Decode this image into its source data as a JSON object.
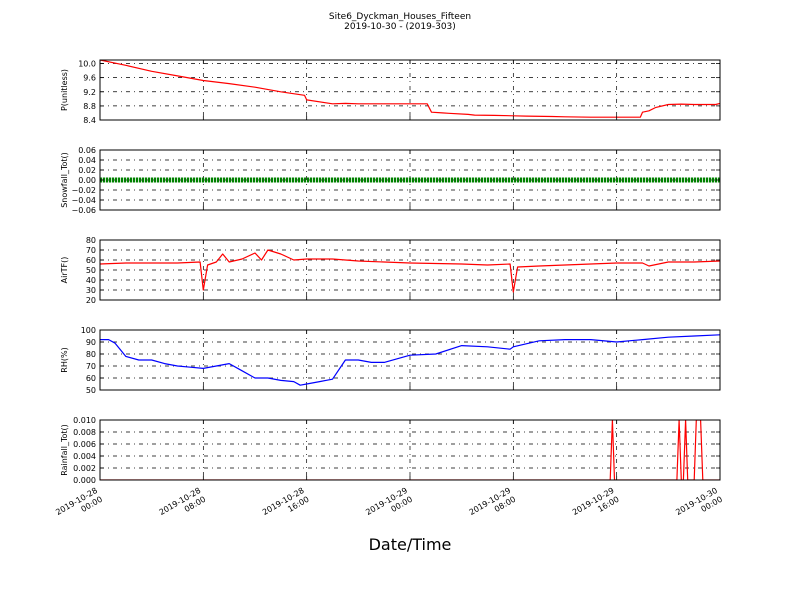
{
  "chart_data": {
    "type": "line",
    "title": "Site6_Dyckman_Houses_Fifteen",
    "subtitle": "2019-10-30 - (2019-303)",
    "xlabel": "Date/Time",
    "x_ticks": [
      {
        "line1": "2019-10-28",
        "line2": "00:00"
      },
      {
        "line1": "2019-10-28",
        "line2": "08:00"
      },
      {
        "line1": "2019-10-28",
        "line2": "16:00"
      },
      {
        "line1": "2019-10-29",
        "line2": "00:00"
      },
      {
        "line1": "2019-10-29",
        "line2": "08:00"
      },
      {
        "line1": "2019-10-29",
        "line2": "16:00"
      },
      {
        "line1": "2019-10-30",
        "line2": "00:00"
      }
    ],
    "xlim": [
      "2019-10-28 00:00",
      "2019-10-30 00:00"
    ],
    "grid": true,
    "panels": [
      {
        "ylabel": "P(unitless)",
        "ylim": [
          8.4,
          10.1
        ],
        "yticks": [
          "10.0",
          "9.6",
          "9.2",
          "8.8",
          "8.4"
        ],
        "ytick_values": [
          10.0,
          9.6,
          9.2,
          8.8,
          8.4
        ],
        "series": [
          {
            "color": "#ff0000",
            "x": [
              "2019-10-28 00:00",
              "2019-10-28 02:00",
              "2019-10-28 04:00",
              "2019-10-28 06:00",
              "2019-10-28 08:00",
              "2019-10-28 10:00",
              "2019-10-28 12:00",
              "2019-10-28 14:00",
              "2019-10-28 15:50",
              "2019-10-28 16:00",
              "2019-10-28 18:00",
              "2019-10-28 19:00",
              "2019-10-28 20:00",
              "2019-10-28 22:00",
              "2019-10-29 00:00",
              "2019-10-29 01:20",
              "2019-10-29 01:40",
              "2019-10-29 02:30",
              "2019-10-29 03:00",
              "2019-10-29 04:30",
              "2019-10-29 05:00",
              "2019-10-29 06:30",
              "2019-10-29 08:00",
              "2019-10-29 09:00",
              "2019-10-29 11:00",
              "2019-10-29 12:00",
              "2019-10-29 14:00",
              "2019-10-29 15:30",
              "2019-10-29 16:00",
              "2019-10-29 17:50",
              "2019-10-29 18:00",
              "2019-10-29 18:30",
              "2019-10-29 19:00",
              "2019-10-29 20:00",
              "2019-10-29 21:00",
              "2019-10-29 22:00",
              "2019-10-29 23:00",
              "2019-10-29 23:40",
              "2019-10-30 00:00"
            ],
            "y": [
              10.1,
              9.95,
              9.78,
              9.65,
              9.52,
              9.43,
              9.33,
              9.2,
              9.1,
              8.97,
              8.86,
              8.87,
              8.86,
              8.86,
              8.86,
              8.86,
              8.62,
              8.6,
              8.59,
              8.56,
              8.54,
              8.53,
              8.52,
              8.51,
              8.5,
              8.49,
              8.48,
              8.48,
              8.48,
              8.48,
              8.62,
              8.66,
              8.75,
              8.84,
              8.85,
              8.84,
              8.84,
              8.84,
              8.87
            ]
          }
        ]
      },
      {
        "ylabel": "Snowfall_Tot()",
        "ylim": [
          -0.06,
          0.06
        ],
        "yticks": [
          "0.06",
          "0.04",
          "0.02",
          "0.00",
          "−0.02",
          "−0.04",
          "−0.06"
        ],
        "ytick_values": [
          0.06,
          0.04,
          0.02,
          0.0,
          -0.02,
          -0.04,
          -0.06
        ],
        "series": [
          {
            "color": "#008000",
            "style": "dense-markers",
            "x": [
              "2019-10-28 00:00",
              "2019-10-30 00:00"
            ],
            "y": [
              0.0,
              0.0
            ]
          }
        ]
      },
      {
        "ylabel": "AirTF()",
        "ylim": [
          20,
          80
        ],
        "yticks": [
          "80",
          "70",
          "60",
          "50",
          "40",
          "30",
          "20"
        ],
        "ytick_values": [
          80,
          70,
          60,
          50,
          40,
          30,
          20
        ],
        "series": [
          {
            "color": "#ff0000",
            "x": [
              "2019-10-28 00:00",
              "2019-10-28 02:00",
              "2019-10-28 04:00",
              "2019-10-28 06:00",
              "2019-10-28 07:45",
              "2019-10-28 08:00",
              "2019-10-28 08:20",
              "2019-10-28 09:00",
              "2019-10-28 09:30",
              "2019-10-28 10:00",
              "2019-10-28 11:00",
              "2019-10-28 12:00",
              "2019-10-28 12:30",
              "2019-10-28 13:00",
              "2019-10-28 14:00",
              "2019-10-28 15:00",
              "2019-10-28 16:00",
              "2019-10-28 18:00",
              "2019-10-28 20:00",
              "2019-10-28 22:00",
              "2019-10-29 00:00",
              "2019-10-29 04:00",
              "2019-10-29 06:00",
              "2019-10-29 07:45",
              "2019-10-29 08:00",
              "2019-10-29 08:20",
              "2019-10-29 10:00",
              "2019-10-29 12:00",
              "2019-10-29 14:00",
              "2019-10-29 16:00",
              "2019-10-29 18:00",
              "2019-10-29 18:30",
              "2019-10-29 20:00",
              "2019-10-29 22:00",
              "2019-10-30 00:00"
            ],
            "y": [
              56,
              57,
              57,
              57,
              58,
              30,
              55,
              58,
              66,
              58,
              61,
              67,
              60,
              70,
              66,
              60,
              61,
              61,
              59,
              58,
              57,
              56,
              55,
              56,
              28,
              53,
              54,
              55,
              56,
              57,
              57,
              54,
              58,
              58,
              59
            ]
          }
        ]
      },
      {
        "ylabel": "RH(%)",
        "ylim": [
          50,
          100
        ],
        "yticks": [
          "100",
          "90",
          "80",
          "70",
          "60",
          "50"
        ],
        "ytick_values": [
          100,
          90,
          80,
          70,
          60,
          50
        ],
        "series": [
          {
            "color": "#0000ff",
            "x": [
              "2019-10-28 00:00",
              "2019-10-28 00:40",
              "2019-10-28 01:10",
              "2019-10-28 02:00",
              "2019-10-28 03:00",
              "2019-10-28 04:00",
              "2019-10-28 05:00",
              "2019-10-28 06:00",
              "2019-10-28 07:00",
              "2019-10-28 08:00",
              "2019-10-28 09:00",
              "2019-10-28 10:00",
              "2019-10-28 11:00",
              "2019-10-28 12:00",
              "2019-10-28 13:00",
              "2019-10-28 14:00",
              "2019-10-28 15:00",
              "2019-10-28 15:30",
              "2019-10-28 16:00",
              "2019-10-28 17:00",
              "2019-10-28 18:00",
              "2019-10-28 19:00",
              "2019-10-28 20:00",
              "2019-10-28 21:00",
              "2019-10-28 22:00",
              "2019-10-29 00:00",
              "2019-10-29 02:00",
              "2019-10-29 04:00",
              "2019-10-29 06:00",
              "2019-10-29 07:45",
              "2019-10-29 08:00",
              "2019-10-29 10:00",
              "2019-10-29 12:00",
              "2019-10-29 14:00",
              "2019-10-29 16:00",
              "2019-10-29 18:00",
              "2019-10-29 20:00",
              "2019-10-29 22:00",
              "2019-10-30 00:00"
            ],
            "y": [
              92,
              92,
              89,
              78,
              75,
              75,
              72,
              70,
              69,
              68,
              70,
              72,
              66,
              60,
              60,
              58,
              57,
              54,
              55,
              57,
              59,
              75,
              75,
              73,
              73,
              79,
              80,
              87,
              86,
              84,
              86,
              91,
              92,
              92,
              90,
              92,
              94,
              95,
              96
            ]
          }
        ]
      },
      {
        "ylabel": "Rainfall_Tot()",
        "ylim": [
          0.0,
          0.01
        ],
        "yticks": [
          "0.010",
          "0.008",
          "0.006",
          "0.004",
          "0.002",
          "0.000"
        ],
        "ytick_values": [
          0.01,
          0.008,
          0.006,
          0.004,
          0.002,
          0.0
        ],
        "series": [
          {
            "color": "#ff0000",
            "x": [
              "2019-10-28 00:00",
              "2019-10-29 15:30",
              "2019-10-29 15:40",
              "2019-10-29 15:50",
              "2019-10-29 20:40",
              "2019-10-29 20:50",
              "2019-10-29 21:00",
              "2019-10-29 21:10",
              "2019-10-29 21:20",
              "2019-10-29 21:30",
              "2019-10-29 22:00",
              "2019-10-29 22:10",
              "2019-10-29 22:20",
              "2019-10-29 22:30",
              "2019-10-29 22:40",
              "2019-10-30 00:00"
            ],
            "y": [
              0.0,
              0.0,
              0.01,
              0.0,
              0.0,
              0.01,
              0.0,
              0.0,
              0.01,
              0.0,
              0.0,
              0.01,
              0.01,
              0.01,
              0.0,
              0.0
            ]
          }
        ]
      }
    ]
  }
}
